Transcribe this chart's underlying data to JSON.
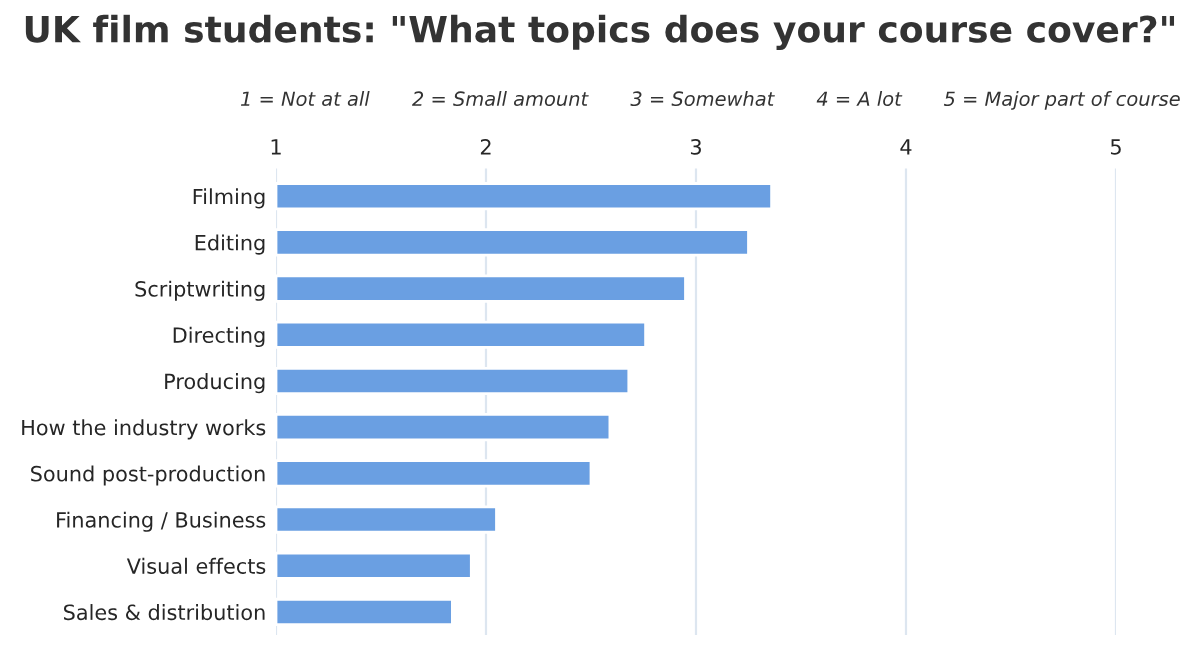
{
  "chart_data": {
    "type": "bar",
    "orientation": "horizontal",
    "title": "UK film students: \"What topics does your course cover?\"",
    "categories": [
      "Filming",
      "Editing",
      "Scriptwriting",
      "Directing",
      "Producing",
      "How the industry works",
      "Sound post-production",
      "Financing / Business",
      "Visual effects",
      "Sales & distribution"
    ],
    "values": [
      3.36,
      3.25,
      2.95,
      2.76,
      2.68,
      2.59,
      2.5,
      2.05,
      1.93,
      1.84
    ],
    "color": "#6a9fe2",
    "xlim": [
      1,
      5
    ],
    "xticks": [
      1,
      2,
      3,
      4,
      5
    ],
    "grid": "x",
    "annotations": [
      "1 = Not at all",
      "2 = Small amount",
      "3 = Somewhat",
      "4 = A lot",
      "5 = Major part of course"
    ]
  }
}
